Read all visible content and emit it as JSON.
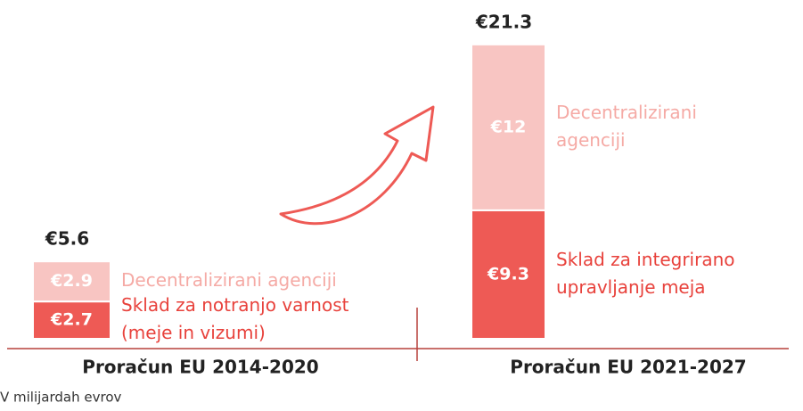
{
  "chart_data": {
    "type": "stacked_bar",
    "categories": [
      "Proračun EU 2014-2020",
      "Proračun EU 2021-2027"
    ],
    "series": [
      {
        "color": "#ee5a55",
        "label_color": "#e8423c",
        "values": [
          2.7,
          9.3
        ],
        "value_labels": [
          "€2.7",
          "€9.3"
        ],
        "labels": [
          [
            "Sklad za notranjo varnost",
            "(meje in vizumi)"
          ],
          [
            "Sklad za integrirano",
            "upravljanje meja"
          ]
        ]
      },
      {
        "color": "#f8c5c2",
        "label_color": "#f5aaa5",
        "values": [
          2.9,
          12
        ],
        "value_labels": [
          "€2.9",
          "€12"
        ],
        "labels": [
          [
            "Decentralizirani agenciji"
          ],
          [
            "Decentralizirani",
            "agenciji"
          ]
        ]
      }
    ],
    "totals": [
      5.6,
      21.3
    ],
    "total_labels": [
      "€5.6",
      "€21.3"
    ],
    "note": "V milijardah evrov"
  }
}
